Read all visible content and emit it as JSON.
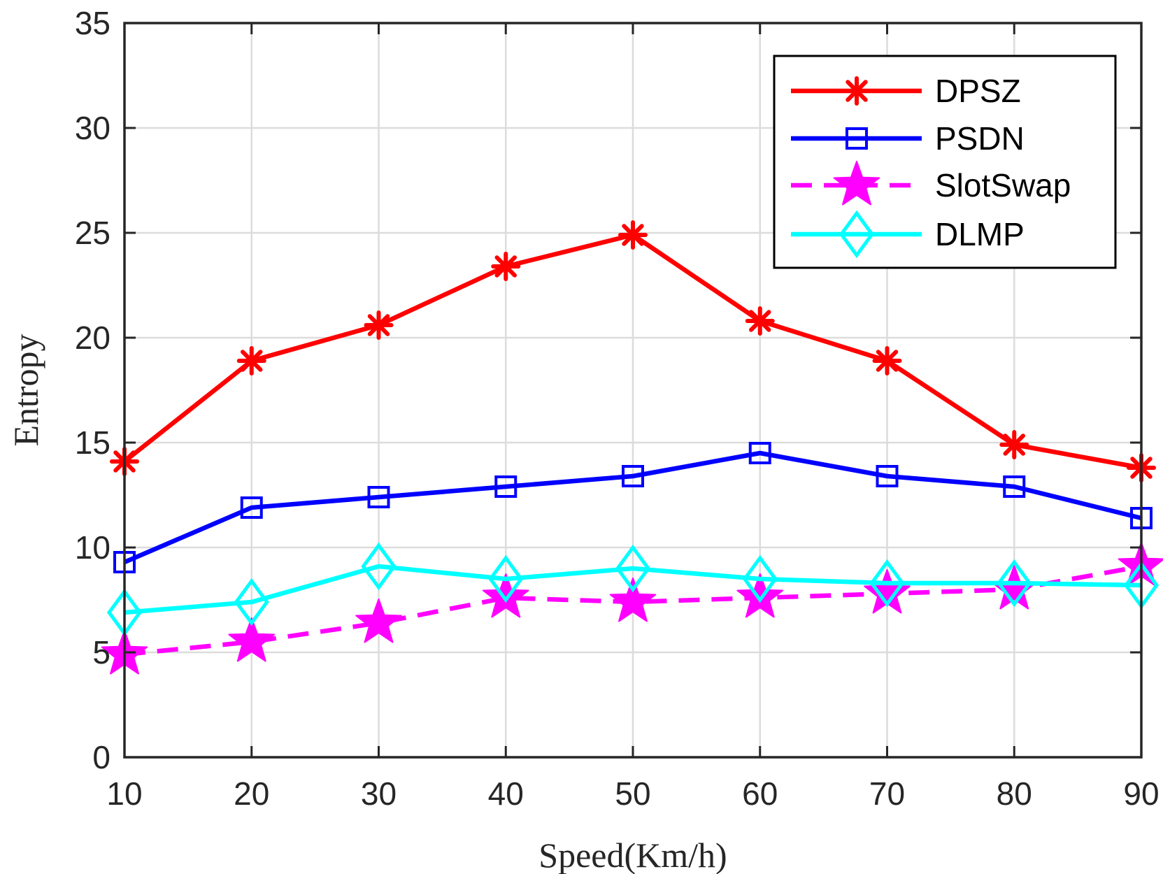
{
  "chart_data": {
    "type": "line",
    "title": "",
    "xlabel": "Speed(Km/h)",
    "ylabel": "Entropy",
    "x": [
      10,
      20,
      30,
      40,
      50,
      60,
      70,
      80,
      90
    ],
    "xlim": [
      10,
      90
    ],
    "ylim": [
      0,
      35
    ],
    "xticks": [
      10,
      20,
      30,
      40,
      50,
      60,
      70,
      80,
      90
    ],
    "yticks": [
      0,
      5,
      10,
      15,
      20,
      25,
      30,
      35
    ],
    "grid": true,
    "legend_position": "top-right",
    "series": [
      {
        "name": "DPSZ",
        "color": "#ff0000",
        "marker": "asterisk",
        "dash": "solid",
        "values": [
          14.1,
          18.9,
          20.6,
          23.4,
          24.9,
          20.8,
          18.9,
          14.9,
          13.8
        ]
      },
      {
        "name": "PSDN",
        "color": "#0000ff",
        "marker": "square",
        "dash": "solid",
        "values": [
          9.3,
          11.9,
          12.4,
          12.9,
          13.4,
          14.5,
          13.4,
          12.9,
          11.4
        ]
      },
      {
        "name": "SlotSwap",
        "color": "#ff00ff",
        "marker": "star",
        "dash": "dashed",
        "values": [
          4.9,
          5.5,
          6.4,
          7.6,
          7.4,
          7.6,
          7.8,
          8.0,
          9.1
        ]
      },
      {
        "name": "DLMP",
        "color": "#00ffff",
        "marker": "diamond",
        "dash": "solid",
        "values": [
          6.9,
          7.4,
          9.1,
          8.5,
          9.0,
          8.5,
          8.3,
          8.3,
          8.2
        ]
      }
    ]
  }
}
